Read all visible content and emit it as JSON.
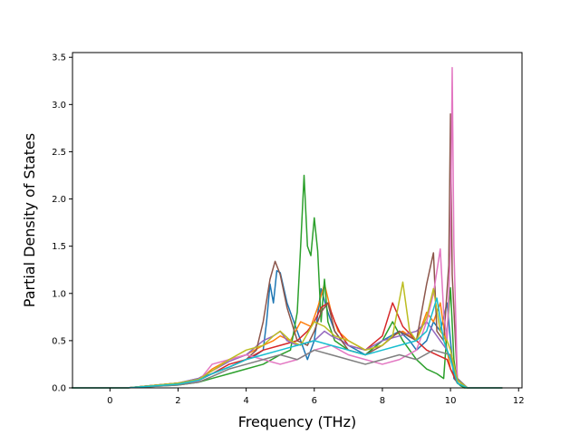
{
  "chart_data": {
    "type": "line",
    "title": "",
    "xlabel": "Frequency (THz)",
    "ylabel": "Partial Density of States",
    "xlim": [
      -1.1,
      12.1
    ],
    "ylim": [
      0.0,
      3.55
    ],
    "xticks": [
      0,
      2,
      4,
      6,
      8,
      10,
      12
    ],
    "xtick_labels": [
      "0",
      "2",
      "4",
      "6",
      "8",
      "10",
      "12"
    ],
    "yticks": [
      0.0,
      0.5,
      1.0,
      1.5,
      2.0,
      2.5,
      3.0,
      3.5
    ],
    "ytick_labels": [
      "0.0",
      "0.5",
      "1.0",
      "1.5",
      "2.0",
      "2.5",
      "3.0",
      "3.5"
    ],
    "grid": false,
    "legend": "none",
    "colors": [
      "#1f77b4",
      "#ff7f0e",
      "#2ca02c",
      "#d62728",
      "#9467bd",
      "#8c564b",
      "#e377c2",
      "#7f7f7f",
      "#bcbd22",
      "#17becf"
    ],
    "series": [
      {
        "x": [
          -1.1,
          0.5,
          2.0,
          2.6,
          3.0,
          3.5,
          4.0,
          4.3,
          4.5,
          4.6,
          4.7,
          4.8,
          4.9,
          5.0,
          5.2,
          5.5,
          5.8,
          6.0,
          6.2,
          6.4,
          6.6,
          6.8,
          7.0,
          7.5,
          8.0,
          8.5,
          8.8,
          9.0,
          9.3,
          9.5,
          9.7,
          9.9,
          10.0,
          10.1,
          10.3,
          10.5,
          11.5
        ],
        "y": [
          0,
          0,
          0.05,
          0.1,
          0.15,
          0.22,
          0.3,
          0.35,
          0.4,
          0.7,
          1.1,
          0.9,
          1.24,
          1.22,
          0.9,
          0.6,
          0.3,
          0.5,
          1.05,
          0.8,
          0.6,
          0.5,
          0.45,
          0.35,
          0.5,
          0.6,
          0.5,
          0.4,
          0.5,
          0.7,
          0.6,
          0.9,
          0.5,
          0.1,
          0.02,
          0,
          0
        ]
      },
      {
        "x": [
          -1.1,
          0.5,
          2.0,
          2.6,
          3.0,
          3.5,
          4.0,
          4.5,
          4.8,
          5.0,
          5.3,
          5.6,
          5.9,
          6.1,
          6.3,
          6.5,
          6.7,
          7.0,
          7.5,
          8.0,
          8.3,
          8.6,
          9.0,
          9.3,
          9.5,
          9.7,
          9.9,
          10.0,
          10.2,
          10.5,
          11.5
        ],
        "y": [
          0,
          0,
          0.04,
          0.08,
          0.2,
          0.3,
          0.35,
          0.45,
          0.5,
          0.55,
          0.5,
          0.7,
          0.65,
          0.85,
          1.1,
          0.8,
          0.6,
          0.5,
          0.4,
          0.45,
          0.55,
          0.6,
          0.5,
          0.8,
          0.7,
          0.9,
          0.4,
          0.2,
          0.05,
          0,
          0
        ]
      },
      {
        "x": [
          -1.1,
          0.5,
          2.0,
          2.6,
          3.0,
          3.5,
          4.0,
          4.5,
          5.0,
          5.3,
          5.5,
          5.6,
          5.7,
          5.8,
          5.9,
          6.0,
          6.1,
          6.2,
          6.3,
          6.4,
          6.6,
          7.0,
          7.5,
          8.0,
          8.3,
          8.6,
          9.0,
          9.3,
          9.6,
          9.8,
          9.9,
          10.0,
          10.1,
          10.2,
          10.4,
          11.5
        ],
        "y": [
          0,
          0,
          0.03,
          0.06,
          0.1,
          0.15,
          0.2,
          0.25,
          0.35,
          0.4,
          0.8,
          1.5,
          2.25,
          1.5,
          1.4,
          1.8,
          1.45,
          0.7,
          1.15,
          0.7,
          0.5,
          0.4,
          0.35,
          0.5,
          0.7,
          0.5,
          0.3,
          0.2,
          0.15,
          0.1,
          0.6,
          1.06,
          0.3,
          0.05,
          0,
          0
        ]
      },
      {
        "x": [
          -1.1,
          0.5,
          2.0,
          2.6,
          3.0,
          3.5,
          4.0,
          4.5,
          5.0,
          5.5,
          5.8,
          6.0,
          6.2,
          6.4,
          6.6,
          6.8,
          7.0,
          7.5,
          8.0,
          8.3,
          8.6,
          9.0,
          9.3,
          9.6,
          9.9,
          10.0,
          10.2,
          10.5,
          11.5
        ],
        "y": [
          0,
          0,
          0.05,
          0.08,
          0.15,
          0.25,
          0.3,
          0.4,
          0.45,
          0.5,
          0.6,
          0.7,
          0.85,
          0.9,
          0.7,
          0.55,
          0.45,
          0.4,
          0.55,
          0.9,
          0.65,
          0.5,
          0.4,
          0.35,
          0.3,
          0.2,
          0.05,
          0,
          0
        ]
      },
      {
        "x": [
          -1.1,
          0.5,
          2.0,
          2.6,
          3.0,
          3.5,
          4.0,
          4.5,
          4.8,
          5.0,
          5.2,
          5.5,
          6.0,
          6.3,
          6.5,
          6.8,
          7.0,
          7.5,
          8.0,
          8.5,
          9.0,
          9.3,
          9.5,
          9.7,
          9.9,
          10.0,
          10.2,
          10.5,
          11.5
        ],
        "y": [
          0,
          0,
          0.05,
          0.1,
          0.18,
          0.28,
          0.35,
          0.5,
          0.55,
          0.6,
          0.5,
          0.45,
          0.5,
          0.6,
          0.55,
          0.5,
          0.45,
          0.4,
          0.5,
          0.55,
          0.6,
          0.7,
          0.6,
          0.5,
          0.4,
          0.3,
          0.08,
          0,
          0
        ]
      },
      {
        "x": [
          -1.1,
          0.5,
          2.0,
          2.6,
          3.0,
          3.5,
          4.0,
          4.3,
          4.5,
          4.7,
          4.85,
          5.0,
          5.2,
          5.5,
          5.8,
          6.0,
          6.2,
          6.4,
          6.6,
          6.8,
          7.0,
          7.5,
          8.0,
          8.5,
          9.0,
          9.3,
          9.5,
          9.6,
          9.8,
          9.95,
          10.0,
          10.05,
          10.2,
          10.5,
          11.5
        ],
        "y": [
          0,
          0,
          0.05,
          0.08,
          0.15,
          0.22,
          0.3,
          0.4,
          0.7,
          1.15,
          1.34,
          1.2,
          0.85,
          0.5,
          0.45,
          0.6,
          0.8,
          0.9,
          0.6,
          0.5,
          0.4,
          0.35,
          0.45,
          0.6,
          0.5,
          1.1,
          1.43,
          0.6,
          0.5,
          1.3,
          2.9,
          1.2,
          0.1,
          0,
          0
        ]
      },
      {
        "x": [
          -1.1,
          0.5,
          2.0,
          2.6,
          3.0,
          3.5,
          4.0,
          4.5,
          5.0,
          5.5,
          6.0,
          6.5,
          7.0,
          7.5,
          8.0,
          8.5,
          9.0,
          9.3,
          9.5,
          9.7,
          9.8,
          9.9,
          10.0,
          10.05,
          10.1,
          10.2,
          10.5,
          11.5
        ],
        "y": [
          0,
          0,
          0.04,
          0.07,
          0.25,
          0.3,
          0.35,
          0.3,
          0.25,
          0.3,
          0.4,
          0.45,
          0.35,
          0.3,
          0.25,
          0.3,
          0.4,
          0.7,
          1.0,
          1.47,
          0.8,
          0.5,
          1.5,
          3.39,
          1.5,
          0.1,
          0,
          0
        ]
      },
      {
        "x": [
          -1.1,
          0.5,
          2.0,
          2.6,
          3.0,
          3.5,
          4.0,
          4.5,
          5.0,
          5.5,
          6.0,
          6.5,
          7.0,
          7.5,
          8.0,
          8.5,
          9.0,
          9.5,
          10.0,
          10.2,
          10.5,
          11.5
        ],
        "y": [
          0,
          0,
          0.03,
          0.06,
          0.12,
          0.2,
          0.25,
          0.3,
          0.35,
          0.3,
          0.4,
          0.35,
          0.3,
          0.25,
          0.3,
          0.35,
          0.3,
          0.4,
          0.35,
          0.1,
          0,
          0
        ]
      },
      {
        "x": [
          -1.1,
          0.5,
          2.0,
          2.6,
          3.0,
          3.5,
          4.0,
          4.5,
          4.8,
          5.0,
          5.3,
          5.6,
          6.0,
          6.3,
          6.6,
          7.0,
          7.5,
          8.0,
          8.3,
          8.6,
          8.8,
          9.0,
          9.3,
          9.5,
          9.7,
          9.9,
          10.0,
          10.2,
          10.5,
          11.5
        ],
        "y": [
          0,
          0,
          0.05,
          0.09,
          0.18,
          0.3,
          0.4,
          0.45,
          0.55,
          0.6,
          0.5,
          0.45,
          0.7,
          0.65,
          0.55,
          0.5,
          0.4,
          0.45,
          0.55,
          1.12,
          0.6,
          0.5,
          0.75,
          1.05,
          0.6,
          0.5,
          0.4,
          0.08,
          0,
          0
        ]
      },
      {
        "x": [
          -1.1,
          0.5,
          2.0,
          2.6,
          3.0,
          3.5,
          4.0,
          4.5,
          5.0,
          5.5,
          6.0,
          6.5,
          7.0,
          7.5,
          8.0,
          8.5,
          9.0,
          9.3,
          9.6,
          9.8,
          10.0,
          10.2,
          10.5,
          11.5
        ],
        "y": [
          0,
          0,
          0.04,
          0.08,
          0.15,
          0.22,
          0.3,
          0.35,
          0.4,
          0.45,
          0.5,
          0.45,
          0.4,
          0.35,
          0.4,
          0.45,
          0.5,
          0.6,
          0.95,
          0.5,
          0.3,
          0.05,
          0,
          0
        ]
      }
    ]
  }
}
